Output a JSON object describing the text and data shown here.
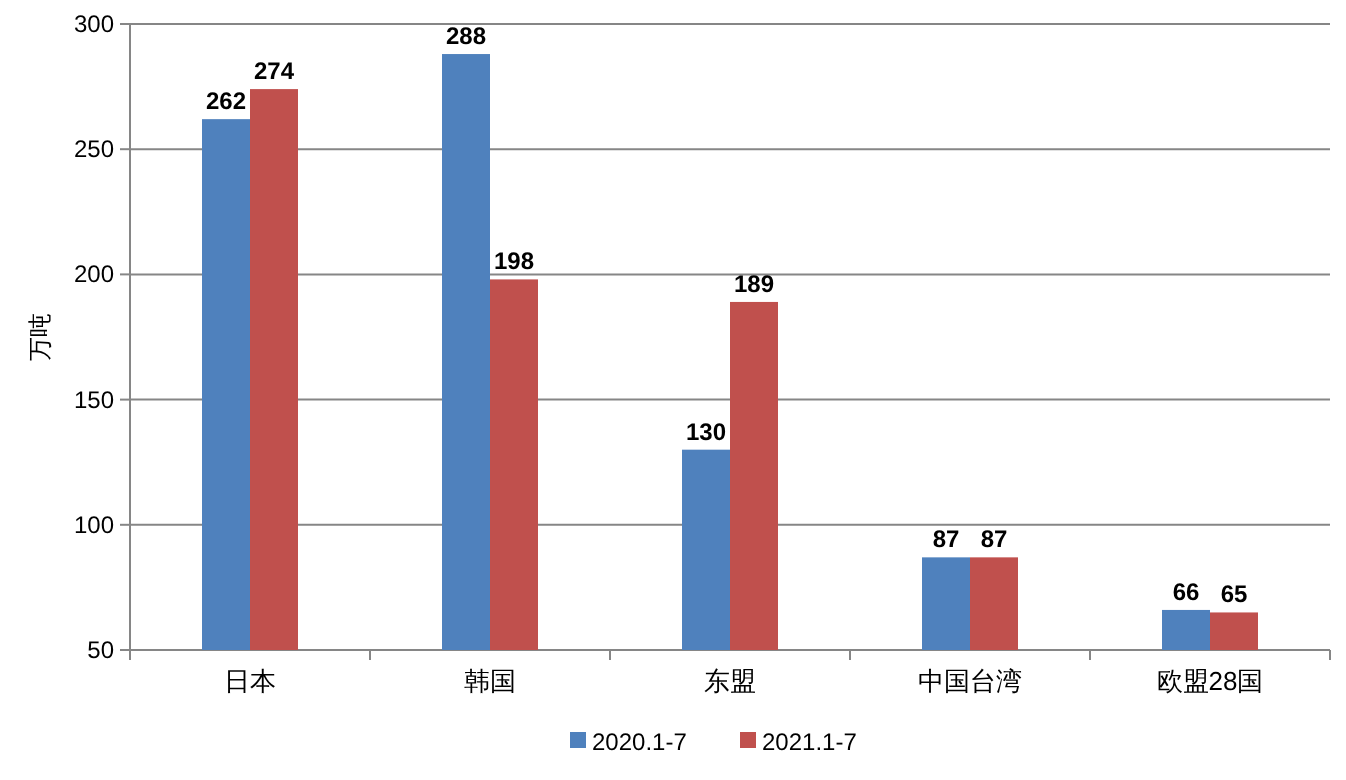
{
  "chart_data": {
    "type": "bar",
    "ylabel": "万吨",
    "categories": [
      "日本",
      "韩国",
      "东盟",
      "中国台湾",
      "欧盟28国"
    ],
    "series": [
      {
        "name": "2020.1-7",
        "color": "#4f81bd",
        "values": [
          262,
          288,
          130,
          87,
          66
        ]
      },
      {
        "name": "2021.1-7",
        "color": "#c0504d",
        "values": [
          274,
          198,
          189,
          87,
          65
        ]
      }
    ],
    "ylim": [
      50,
      300
    ],
    "yticks": [
      50,
      100,
      150,
      200,
      250,
      300
    ],
    "grid": "y",
    "legend": "bottom",
    "data_labels": true
  }
}
